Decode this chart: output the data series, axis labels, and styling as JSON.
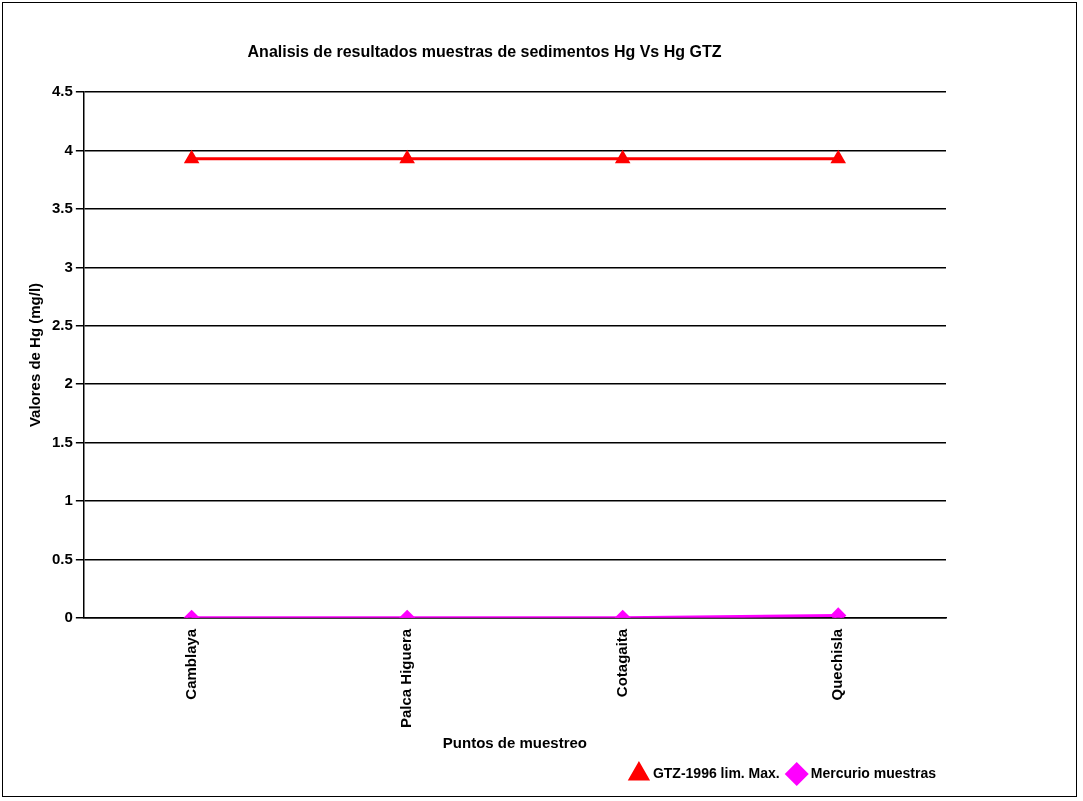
{
  "chart_data": {
    "type": "line",
    "title": "Analisis de resultados muestras de sedimentos Hg Vs Hg GTZ",
    "xlabel": "Puntos de muestreo",
    "ylabel": "Valores de Hg (mg/l)",
    "categories": [
      "Camblaya",
      "Palca Higuera",
      "Cotagaita",
      "Quechisla"
    ],
    "series": [
      {
        "name": "GTZ-1996 lim. Max.",
        "color": "#ff0000",
        "marker": "triangle",
        "values": [
          3.93,
          3.93,
          3.93,
          3.93
        ]
      },
      {
        "name": "Mercurio muestras",
        "color": "#ff00ff",
        "marker": "diamond",
        "values": [
          0.0,
          0.0,
          0.0,
          0.02
        ]
      }
    ],
    "ylim": [
      0,
      4.5
    ],
    "yticks": [
      0,
      0.5,
      1,
      1.5,
      2,
      2.5,
      3,
      3.5,
      4,
      4.5
    ],
    "grid": "y",
    "legend": "bottom right"
  }
}
